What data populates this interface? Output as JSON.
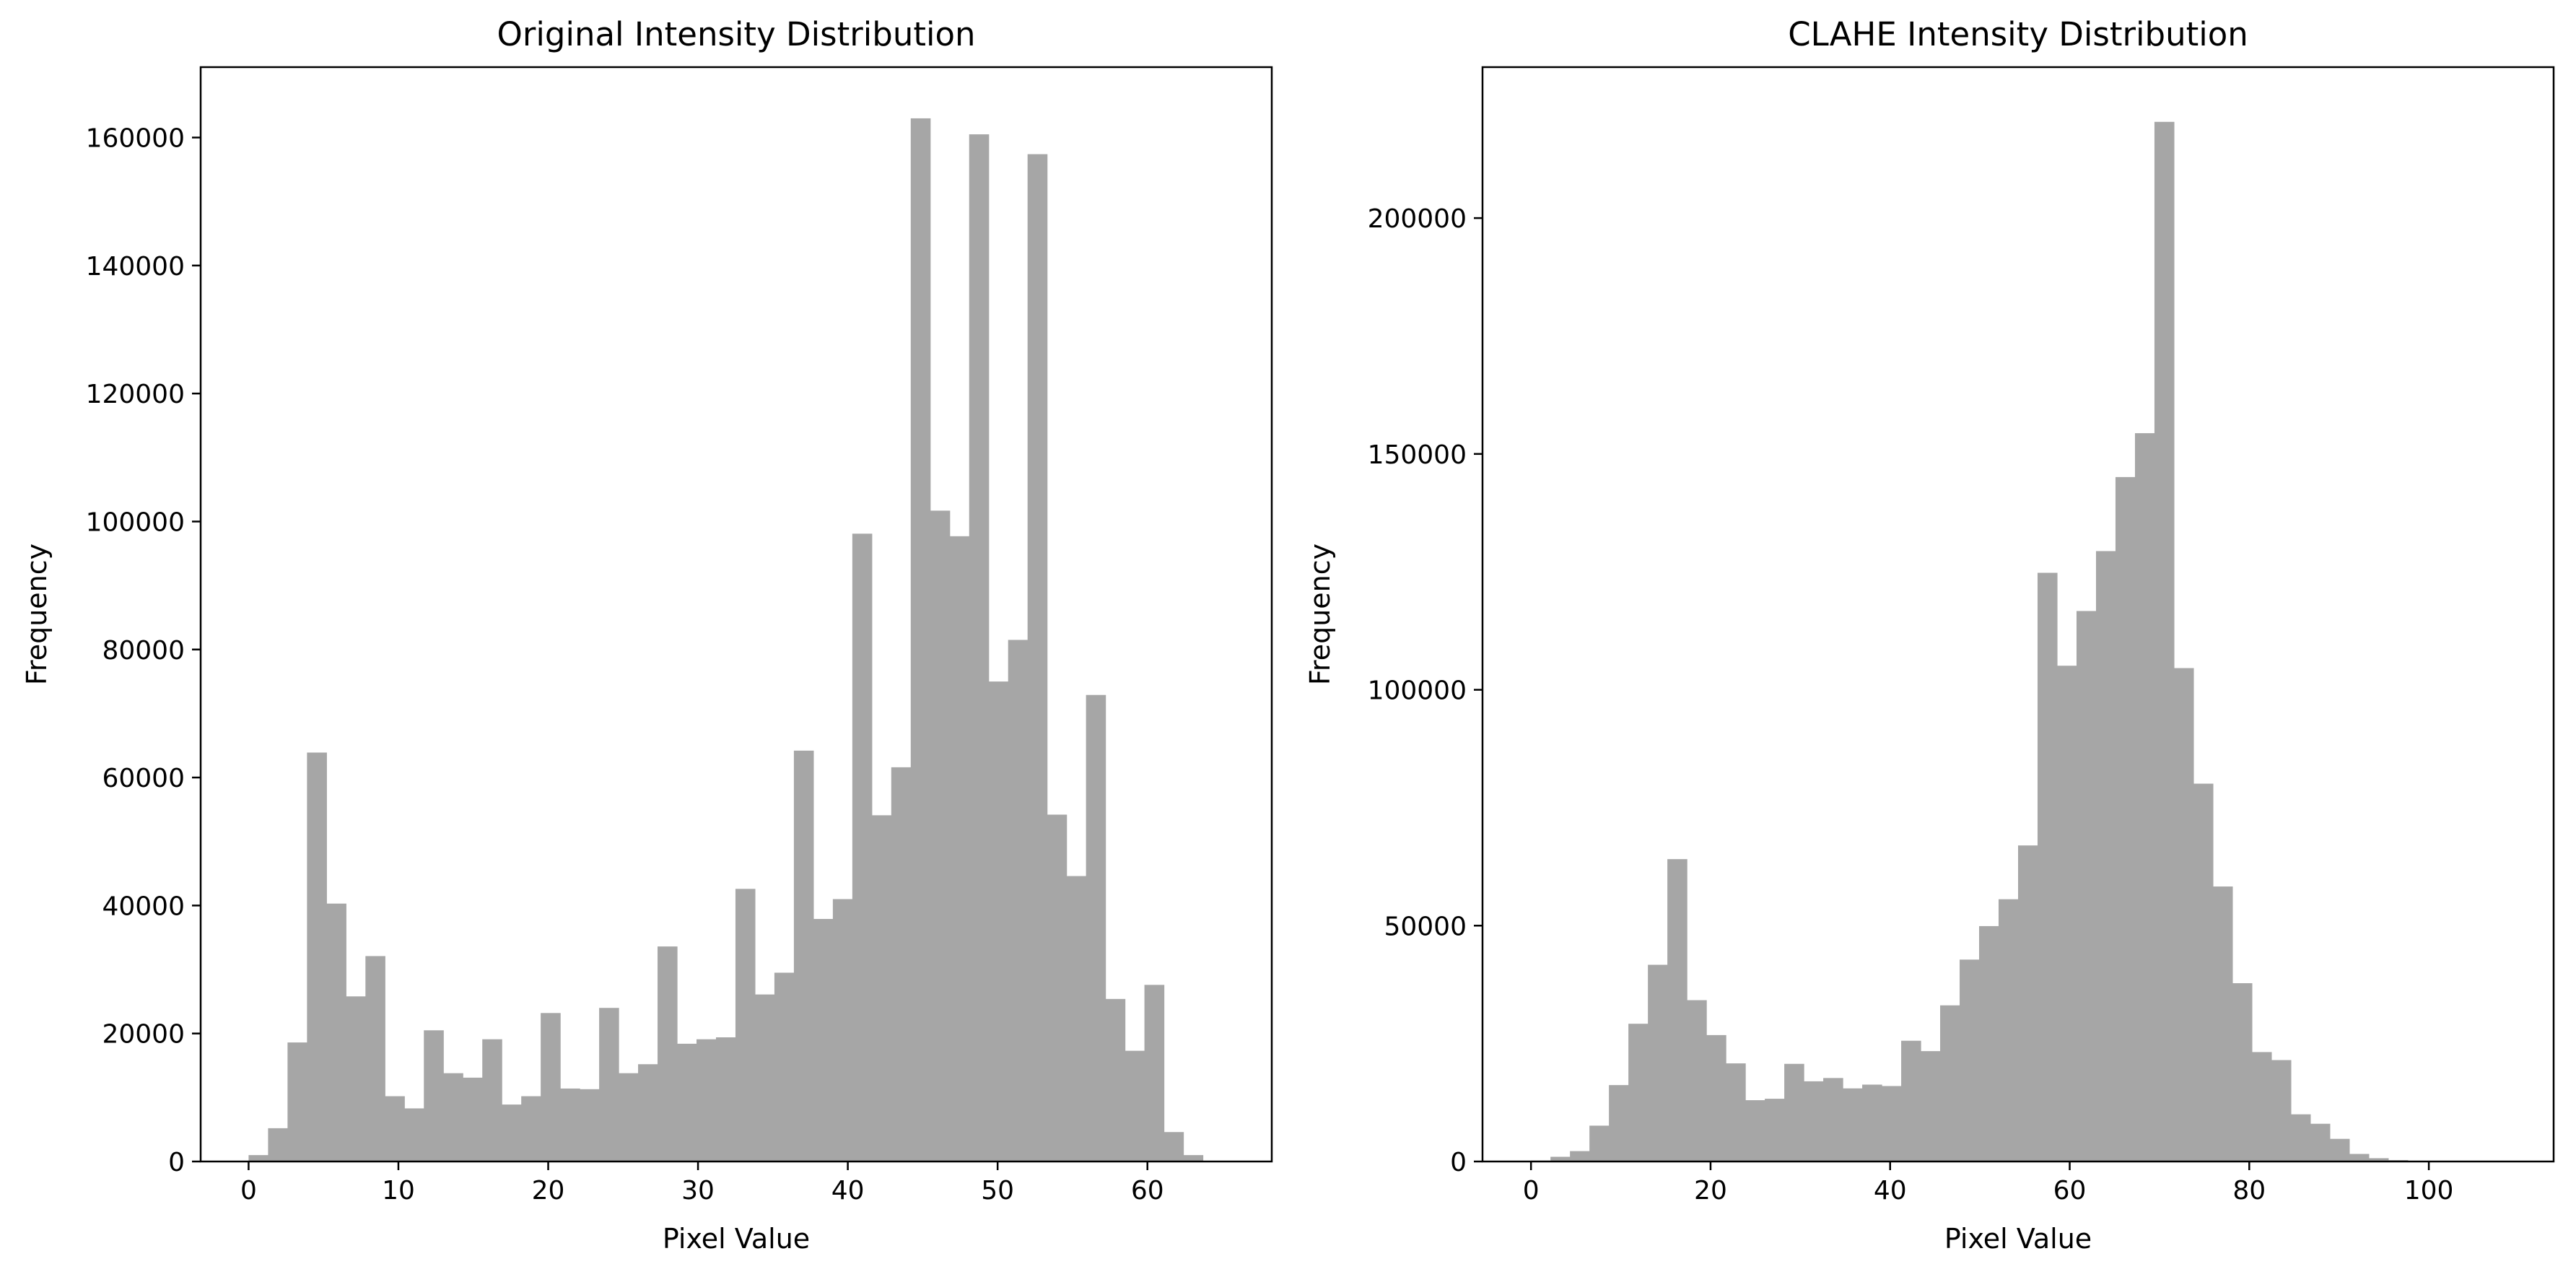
{
  "colors": {
    "bar": "#a6a6a6",
    "axes": "#000000",
    "background": "#ffffff"
  },
  "chart_data": [
    {
      "type": "bar",
      "title": "Original Intensity Distribution",
      "xlabel": "Pixel Value",
      "ylabel": "Frequency",
      "xlim": [
        -3.2,
        68.3
      ],
      "ylim": [
        0,
        171000
      ],
      "xticks": [
        0,
        10,
        20,
        30,
        40,
        50,
        60
      ],
      "yticks": [
        0,
        20000,
        40000,
        60000,
        80000,
        100000,
        120000,
        140000,
        160000
      ],
      "grid": false,
      "bin_start": 0,
      "bin_width": 1.3,
      "values": [
        1000,
        5200,
        18600,
        63900,
        40300,
        25800,
        32100,
        10200,
        8300,
        20500,
        13800,
        13100,
        19100,
        8900,
        10200,
        23200,
        11400,
        11300,
        24000,
        13800,
        15200,
        33600,
        18400,
        19100,
        19400,
        42600,
        26100,
        29500,
        64200,
        37900,
        41000,
        98100,
        54100,
        61600,
        163000,
        101700,
        97700,
        160500,
        75000,
        81500,
        157400,
        54200,
        44600,
        72900,
        25400,
        17300,
        27600,
        4600,
        1000,
        0
      ]
    },
    {
      "type": "bar",
      "title": "CLAHE Intensity Distribution",
      "xlabel": "Pixel Value",
      "ylabel": "Frequency",
      "xlim": [
        -5.4,
        113.9
      ],
      "ylim": [
        0,
        232000
      ],
      "xticks": [
        0,
        20,
        40,
        60,
        80,
        100
      ],
      "yticks": [
        0,
        50000,
        100000,
        150000,
        200000
      ],
      "grid": false,
      "bin_start": 0,
      "bin_width": 2.17,
      "values": [
        200,
        1000,
        2200,
        7600,
        16200,
        29200,
        41700,
        64100,
        34200,
        26800,
        20800,
        13000,
        13300,
        20700,
        17000,
        17700,
        15500,
        16300,
        16000,
        25600,
        23400,
        33100,
        42800,
        49900,
        55600,
        67000,
        124800,
        105100,
        116700,
        129400,
        145100,
        154400,
        220400,
        104600,
        80100,
        58300,
        37800,
        23200,
        21500,
        10000,
        8000,
        4800,
        1600,
        700,
        300,
        100,
        100,
        0,
        0,
        0
      ]
    }
  ]
}
